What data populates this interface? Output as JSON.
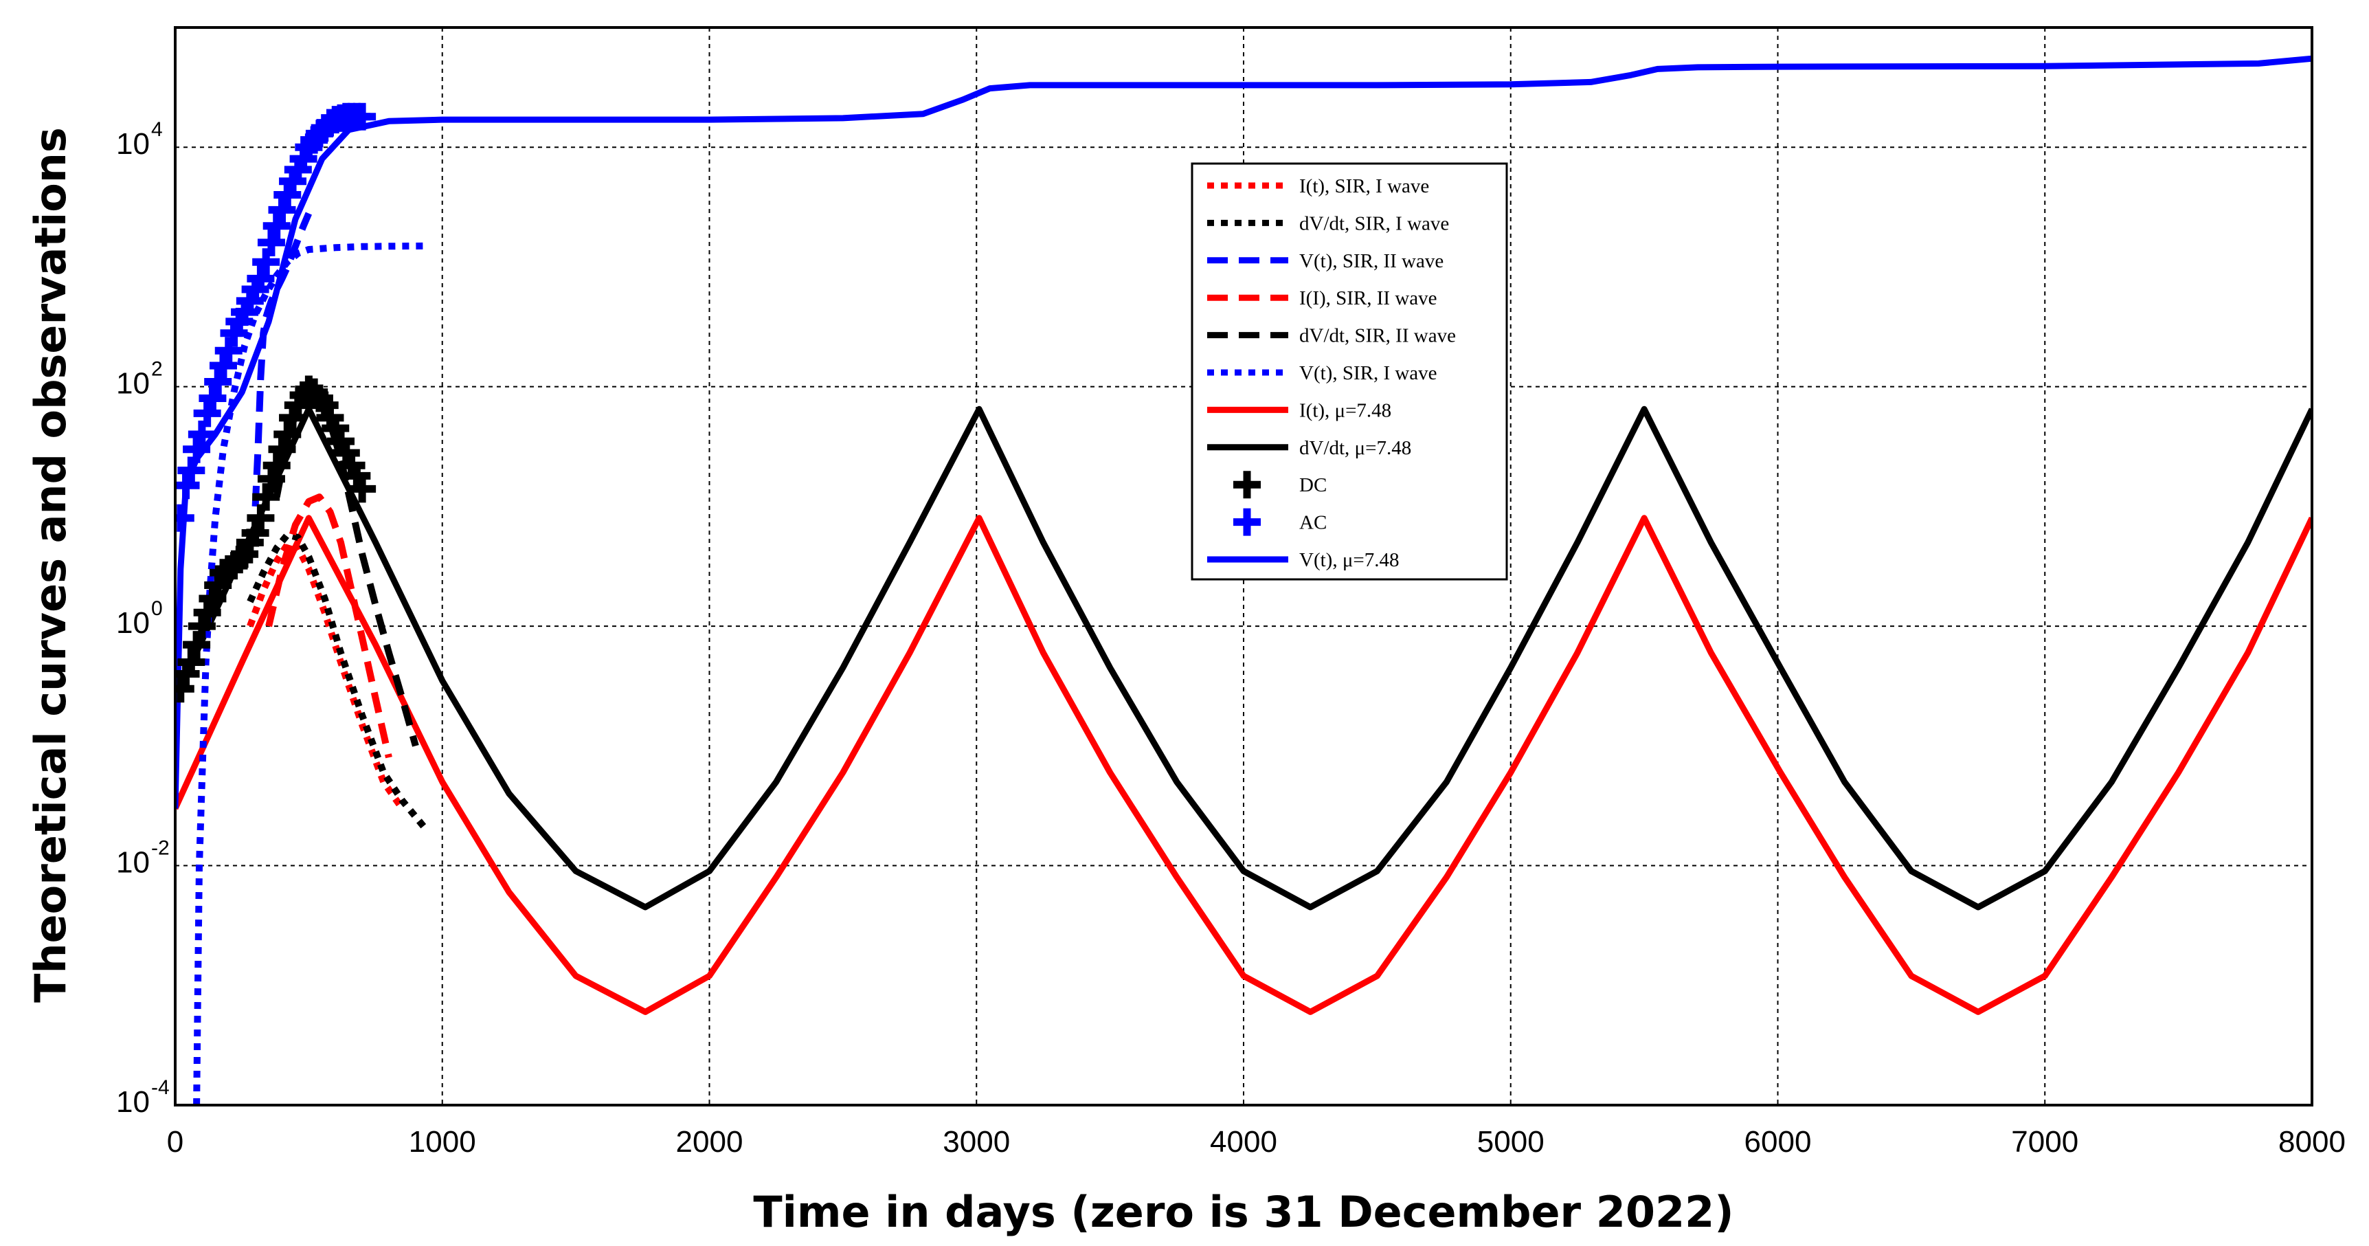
{
  "chart_data": {
    "type": "line",
    "title": "",
    "xlabel": "Time in days (zero is 31 December 2022)",
    "ylabel": "Theoretical curves and observations",
    "xlim": [
      0,
      8000
    ],
    "ylim": [
      0.0001,
      100000
    ],
    "yscale": "log",
    "grid": true,
    "x_ticks": [
      0,
      1000,
      2000,
      3000,
      4000,
      5000,
      6000,
      7000,
      8000
    ],
    "x_tick_labels": [
      "0",
      "1000",
      "2000",
      "3000",
      "4000",
      "5000",
      "6000",
      "7000",
      "8000"
    ],
    "y_ticks": [
      0.0001,
      0.01,
      1,
      100,
      10000
    ],
    "y_tick_labels": [
      {
        "base": "10",
        "exp": "-4"
      },
      {
        "base": "10",
        "exp": "-2"
      },
      {
        "base": "10",
        "exp": "0"
      },
      {
        "base": "10",
        "exp": "2"
      },
      {
        "base": "10",
        "exp": "4"
      }
    ],
    "legend_position": "top-center",
    "series": [
      {
        "name": "I(t), SIR, I wave",
        "color": "#ff0000",
        "style": "dotted",
        "x": [
          280,
          330,
          380,
          420,
          460,
          500,
          560,
          620,
          700,
          780,
          850
        ],
        "y": [
          1.0,
          2.0,
          3.5,
          4.8,
          4.5,
          3.0,
          1.3,
          0.5,
          0.15,
          0.05,
          0.03
        ]
      },
      {
        "name": "dV/dt, SIR, I wave",
        "color": "#000000",
        "style": "dotted",
        "x": [
          280,
          330,
          380,
          420,
          460,
          500,
          560,
          620,
          700,
          780,
          850,
          940
        ],
        "y": [
          1.6,
          2.8,
          4.5,
          5.8,
          5.5,
          3.8,
          1.7,
          0.6,
          0.18,
          0.06,
          0.035,
          0.02
        ]
      },
      {
        "name": "V(t), SIR, II wave",
        "color": "#0000ff",
        "style": "dashed",
        "x": [
          300,
          310,
          320,
          330,
          340,
          350,
          360,
          380,
          400,
          420,
          440,
          460,
          480,
          500
        ],
        "y": [
          10,
          30,
          120,
          280,
          380,
          450,
          520,
          650,
          800,
          1000,
          1300,
          1700,
          2200,
          2800
        ]
      },
      {
        "name": "I(I), SIR, II wave",
        "color": "#ff0000",
        "style": "dashed",
        "x": [
          350,
          400,
          450,
          500,
          540,
          580,
          620,
          660,
          700,
          750,
          800
        ],
        "y": [
          1.0,
          3.0,
          7.0,
          11.0,
          12.0,
          9.0,
          5.0,
          2.0,
          0.8,
          0.25,
          0.08
        ]
      },
      {
        "name": "dV/dt, SIR, II wave",
        "color": "#000000",
        "style": "dashed",
        "x": [
          380,
          420,
          460,
          500,
          540,
          580,
          620,
          660,
          700,
          750,
          800,
          850,
          900
        ],
        "y": [
          12,
          35,
          70,
          90,
          80,
          50,
          25,
          10,
          4,
          1.5,
          0.6,
          0.25,
          0.1
        ]
      },
      {
        "name": "V(t), SIR, I wave",
        "color": "#0000ff",
        "style": "dotted",
        "x": [
          80,
          85,
          90,
          100,
          115,
          130,
          150,
          180,
          220,
          260,
          300,
          340,
          380,
          420,
          460,
          500,
          600,
          700,
          800,
          940
        ],
        "y": [
          0.0001,
          0.001,
          0.01,
          0.05,
          0.5,
          2,
          8,
          30,
          90,
          220,
          400,
          600,
          850,
          1100,
          1300,
          1400,
          1450,
          1480,
          1490,
          1500
        ]
      },
      {
        "name": "I(t), μ=7.48",
        "color": "#ff0000",
        "style": "solid",
        "x": [
          0,
          250,
          500,
          750,
          1000,
          1250,
          1500,
          1760,
          2000,
          2250,
          2500,
          2750,
          3010,
          3250,
          3500,
          3750,
          4000,
          4250,
          4500,
          4760,
          5000,
          5250,
          5500,
          5750,
          6010,
          6250,
          6500,
          6750,
          7000,
          7250,
          7500,
          7760,
          8000
        ],
        "y": [
          0.03,
          0.5,
          8,
          0.7,
          0.05,
          0.006,
          0.0012,
          0.0006,
          0.0012,
          0.008,
          0.06,
          0.6,
          8,
          0.6,
          0.06,
          0.008,
          0.0012,
          0.0006,
          0.0012,
          0.008,
          0.06,
          0.6,
          8,
          0.6,
          0.06,
          0.008,
          0.0012,
          0.0006,
          0.0012,
          0.008,
          0.06,
          0.6,
          8
        ]
      },
      {
        "name": "dV/dt, μ=7.48",
        "color": "#000000",
        "style": "solid",
        "x": [
          0,
          250,
          500,
          750,
          1000,
          1250,
          1500,
          1760,
          2000,
          2250,
          2500,
          2750,
          3010,
          3250,
          3500,
          3750,
          4000,
          4250,
          4500,
          4760,
          5000,
          5250,
          5500,
          5750,
          6010,
          6250,
          6500,
          6750,
          7000,
          7250,
          7500,
          7760,
          8000
        ],
        "y": [
          0.25,
          4,
          65,
          5,
          0.35,
          0.04,
          0.009,
          0.0045,
          0.009,
          0.05,
          0.45,
          5,
          65,
          5,
          0.45,
          0.05,
          0.009,
          0.0045,
          0.009,
          0.05,
          0.45,
          5,
          65,
          5,
          0.45,
          0.05,
          0.009,
          0.0045,
          0.009,
          0.05,
          0.45,
          5,
          65
        ]
      },
      {
        "name": "DC",
        "color": "#000000",
        "style": "plus",
        "x": [
          20,
          40,
          60,
          80,
          100,
          120,
          140,
          160,
          180,
          200,
          220,
          240,
          260,
          280,
          300,
          320,
          340,
          360,
          380,
          400,
          420,
          440,
          460,
          480,
          500,
          520,
          540,
          560,
          580,
          600,
          620,
          640,
          660,
          680,
          700
        ],
        "y": [
          0.3,
          0.4,
          0.5,
          0.7,
          1.0,
          1.3,
          1.7,
          2.2,
          2.8,
          3.0,
          3.2,
          3.6,
          4.0,
          5.0,
          6.0,
          8.0,
          12,
          17,
          22,
          30,
          40,
          55,
          70,
          85,
          95,
          90,
          80,
          70,
          55,
          45,
          35,
          28,
          22,
          18,
          14
        ]
      },
      {
        "name": "AC",
        "color": "#0000ff",
        "style": "plus",
        "x": [
          20,
          40,
          60,
          80,
          100,
          120,
          140,
          160,
          180,
          200,
          220,
          240,
          260,
          280,
          300,
          320,
          340,
          360,
          380,
          400,
          420,
          440,
          460,
          480,
          500,
          520,
          540,
          560,
          580,
          600,
          620,
          640,
          660,
          680,
          700
        ],
        "y": [
          8,
          15,
          20,
          30,
          40,
          60,
          80,
          110,
          150,
          200,
          280,
          350,
          420,
          520,
          650,
          800,
          1100,
          1600,
          2200,
          3000,
          4000,
          5200,
          6500,
          8000,
          10000,
          11500,
          13000,
          14500,
          16000,
          17000,
          17500,
          18000,
          18000,
          18000,
          18000
        ]
      },
      {
        "name": "V(t), μ=7.48",
        "color": "#0000ff",
        "style": "solid",
        "x": [
          0,
          20,
          40,
          80,
          150,
          250,
          350,
          450,
          550,
          650,
          800,
          1000,
          1500,
          2000,
          2500,
          2800,
          2950,
          3050,
          3200,
          3500,
          4000,
          4500,
          5000,
          5300,
          5450,
          5550,
          5700,
          6000,
          7000,
          7800,
          8000
        ],
        "y": [
          0.03,
          3,
          15,
          25,
          40,
          90,
          350,
          2500,
          8000,
          14000,
          16500,
          17000,
          17000,
          17000,
          17500,
          19000,
          25000,
          31000,
          33000,
          33000,
          33000,
          33000,
          33500,
          35000,
          40000,
          45000,
          46500,
          47000,
          47500,
          50000,
          55000
        ]
      }
    ]
  }
}
